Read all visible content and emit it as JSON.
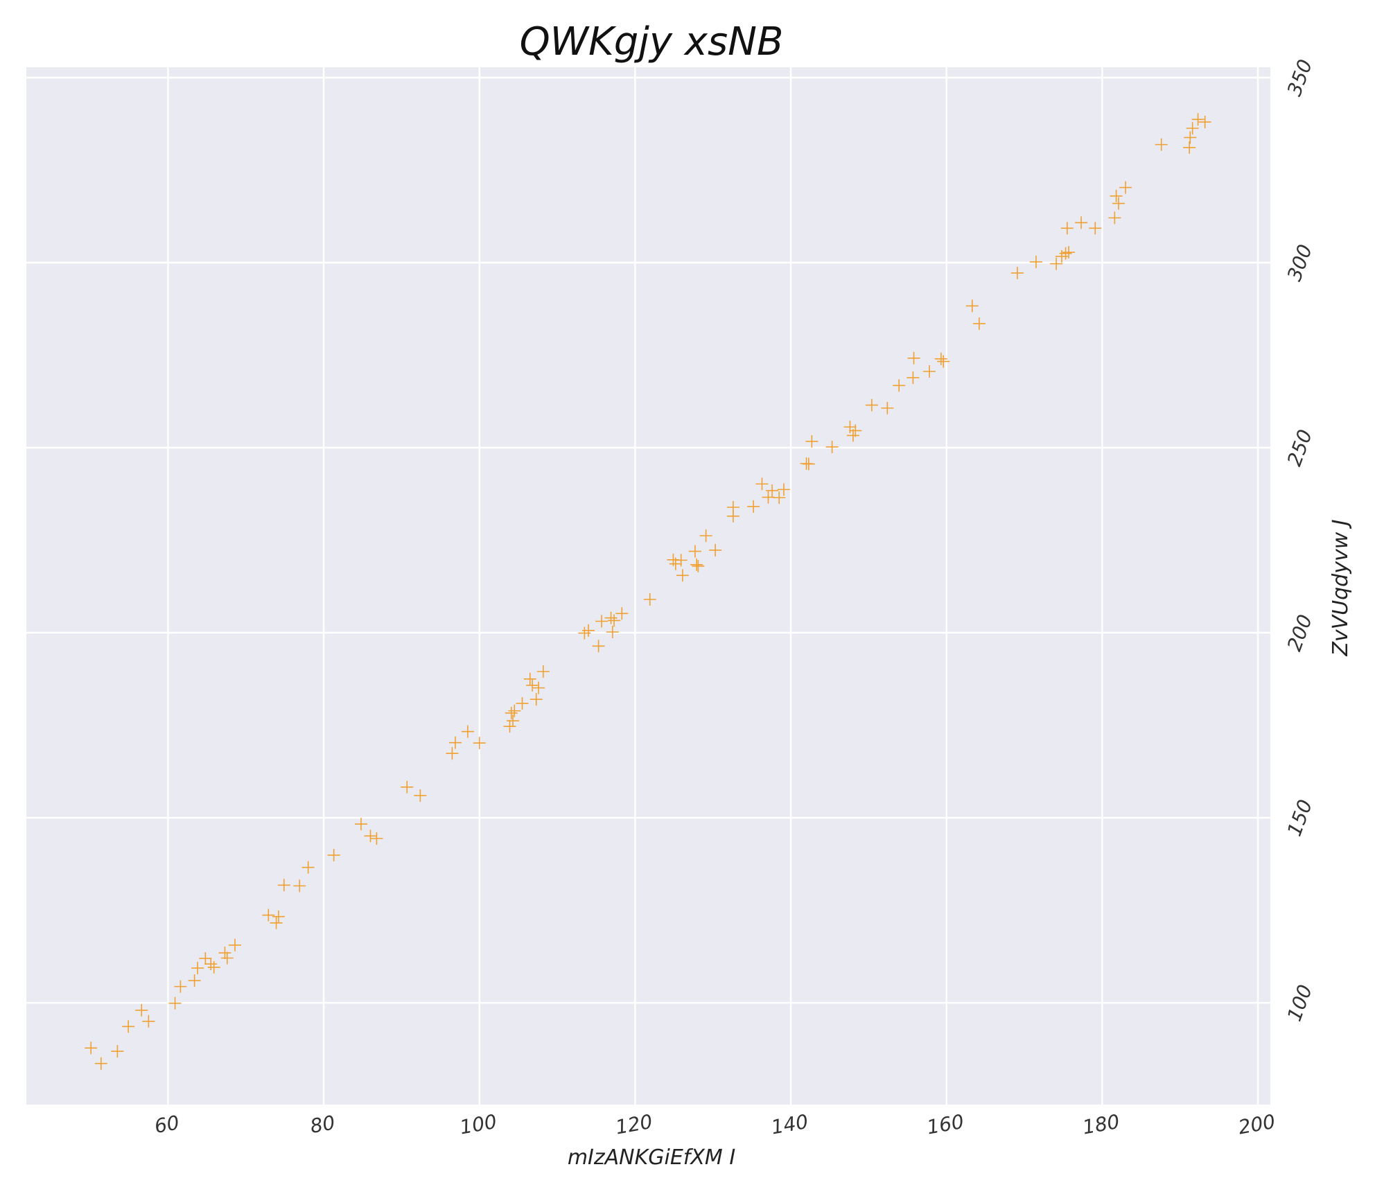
{
  "chart_data": {
    "type": "scatter",
    "title": "QWKgjy xsNB",
    "xlabel": "mIzANKGiEfXM I",
    "ylabel": "ZvVUqdyvw J",
    "xlim": [
      41.8,
      201.6
    ],
    "ylim": [
      72.5,
      352.8
    ],
    "xticks": [
      60,
      80,
      100,
      120,
      140,
      160,
      180,
      200
    ],
    "yticks": [
      100,
      150,
      200,
      250,
      300,
      350
    ],
    "grid": true,
    "marker": "+",
    "marker_color": "#f0a030",
    "background_color": "#eaeaf2",
    "y_axis_side": "right",
    "x": [
      50.1,
      51.4,
      53.5,
      54.9,
      56.6,
      57.5,
      60.9,
      61.6,
      63.4,
      63.8,
      64.8,
      65.5,
      65.9,
      67.3,
      67.6,
      68.6,
      72.9,
      73.9,
      74.2,
      74.9,
      76.9,
      78.0,
      81.3,
      84.8,
      86.0,
      86.8,
      90.7,
      92.4,
      96.5,
      96.9,
      98.5,
      100.0,
      103.9,
      104.1,
      104.3,
      104.5,
      105.5,
      106.5,
      106.8,
      107.3,
      107.6,
      108.2,
      113.5,
      114.0,
      115.3,
      115.7,
      116.9,
      117.1,
      117.3,
      118.3,
      121.9,
      124.9,
      125.2,
      125.9,
      126.1,
      127.7,
      127.9,
      128.1,
      129.1,
      130.3,
      132.6,
      132.6,
      135.2,
      136.3,
      137.1,
      137.6,
      138.5,
      139.1,
      142.0,
      142.3,
      142.7,
      145.3,
      147.6,
      148.0,
      148.3,
      150.4,
      152.4,
      153.9,
      155.7,
      155.8,
      157.8,
      159.3,
      159.6,
      163.3,
      164.2,
      169.1,
      171.5,
      174.1,
      174.8,
      175.3,
      175.5,
      175.7,
      177.3,
      179.1,
      181.6,
      181.8,
      182.1,
      183.0,
      187.6,
      191.2,
      191.3,
      191.6,
      192.3,
      193.2
    ],
    "y": [
      87.8,
      83.6,
      86.9,
      93.6,
      98.0,
      95.0,
      99.9,
      104.4,
      106.0,
      109.4,
      112.0,
      110.5,
      109.6,
      113.5,
      112.1,
      115.6,
      123.7,
      121.6,
      123.3,
      131.8,
      131.6,
      136.6,
      139.9,
      148.3,
      145.1,
      144.4,
      158.3,
      156.0,
      167.4,
      170.3,
      173.3,
      170.2,
      174.7,
      178.3,
      176.2,
      178.9,
      180.9,
      187.5,
      185.8,
      182.0,
      185.1,
      189.5,
      199.9,
      200.6,
      196.4,
      203.1,
      204.0,
      200.2,
      203.3,
      205.2,
      209.0,
      219.7,
      218.6,
      219.6,
      215.5,
      222.0,
      218.4,
      218.0,
      226.2,
      222.3,
      231.5,
      233.9,
      234.1,
      240.2,
      236.6,
      238.4,
      236.5,
      238.7,
      245.7,
      245.6,
      251.7,
      250.2,
      255.6,
      253.3,
      254.6,
      261.5,
      260.7,
      266.8,
      268.9,
      274.2,
      270.6,
      274.0,
      273.3,
      288.3,
      283.5,
      297.2,
      300.2,
      299.7,
      301.7,
      302.5,
      309.3,
      302.8,
      310.8,
      309.3,
      312.1,
      318.0,
      316.0,
      320.3,
      331.9,
      331.1,
      333.8,
      336.3,
      338.7,
      338.0
    ]
  }
}
